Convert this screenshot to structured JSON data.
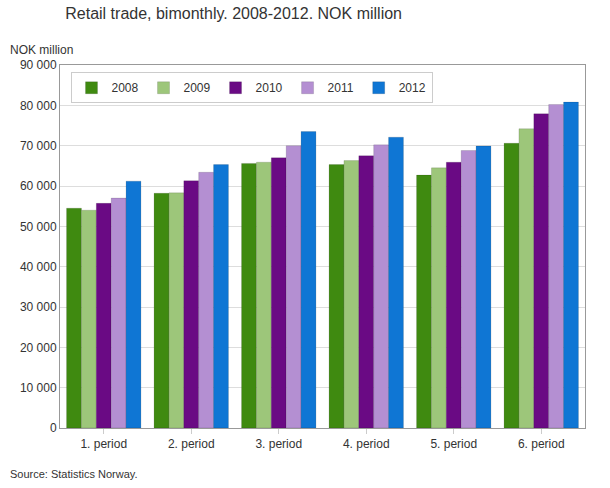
{
  "chart_data": {
    "type": "bar",
    "title": "Retail trade, bimonthly. 2008-2012. NOK million",
    "ylabel": "NOK million",
    "annotations": [
      "Source: Statistics Norway."
    ],
    "categories": [
      "1. period",
      "2. period",
      "3. period",
      "4. period",
      "5. period",
      "6. period"
    ],
    "series": [
      {
        "name": "2008",
        "color": "#3f8a10",
        "values": [
          54500,
          58200,
          65600,
          65300,
          62700,
          70600
        ]
      },
      {
        "name": "2009",
        "color": "#9dc67a",
        "values": [
          54000,
          58300,
          65900,
          66300,
          64500,
          74200
        ]
      },
      {
        "name": "2010",
        "color": "#6a0a84",
        "values": [
          55700,
          61300,
          67000,
          67500,
          65900,
          77900
        ]
      },
      {
        "name": "2011",
        "color": "#b48fd2",
        "values": [
          57000,
          63400,
          70000,
          70200,
          68800,
          80200
        ]
      },
      {
        "name": "2012",
        "color": "#0f76d4",
        "values": [
          61200,
          65300,
          73500,
          72100,
          69900,
          80800
        ]
      }
    ],
    "ylim": [
      0,
      90000
    ],
    "yticks": [
      0,
      {
        "value": 10000,
        "label": "10 000"
      },
      {
        "value": 20000,
        "label": "20 000"
      },
      {
        "value": 30000,
        "label": "30 000"
      },
      {
        "value": 40000,
        "label": "40 000"
      },
      {
        "value": 50000,
        "label": "50 000"
      },
      {
        "value": 60000,
        "label": "60 000"
      },
      {
        "value": 70000,
        "label": "70 000"
      },
      {
        "value": 80000,
        "label": "80 000"
      },
      {
        "value": 90000,
        "label": "90 000"
      }
    ],
    "grid": true,
    "legend": "top left"
  }
}
